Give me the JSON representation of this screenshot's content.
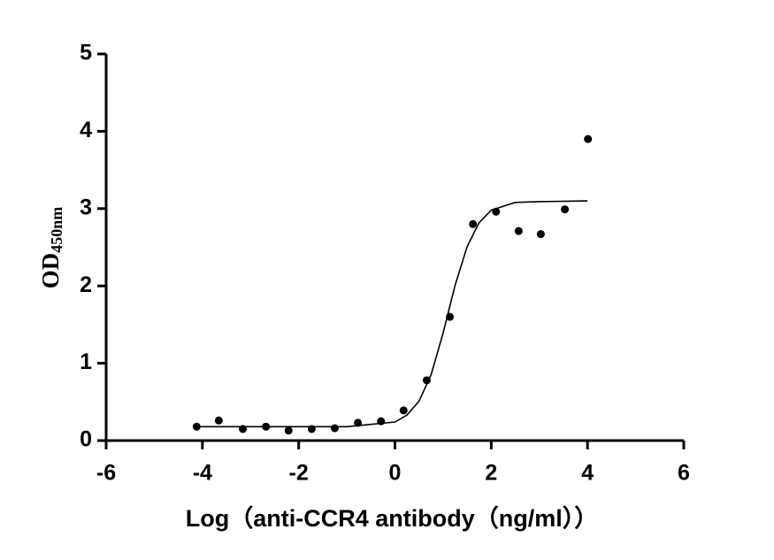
{
  "chart_data": {
    "type": "scatter",
    "xlabel": "Log（anti-CCR4 antibody（ng/ml））",
    "ylabel": "OD",
    "ylabel_subscript": "450nm",
    "x": [
      -4.12,
      -3.66,
      -3.16,
      -2.68,
      -2.21,
      -1.73,
      -1.25,
      -0.77,
      -0.29,
      0.18,
      0.66,
      1.14,
      1.62,
      2.1,
      2.57,
      3.03,
      3.53,
      4.01
    ],
    "y": [
      0.18,
      0.26,
      0.15,
      0.18,
      0.13,
      0.15,
      0.16,
      0.23,
      0.25,
      0.39,
      0.78,
      1.6,
      2.8,
      2.96,
      2.71,
      2.67,
      2.99,
      3.9
    ],
    "color": "#000000",
    "fit": {
      "x": [
        -4.1,
        -3,
        -2,
        -1,
        0,
        0.25,
        0.5,
        0.75,
        1,
        1.25,
        1.5,
        1.75,
        2,
        2.5,
        3,
        4
      ],
      "y": [
        0.18,
        0.18,
        0.18,
        0.18,
        0.24,
        0.33,
        0.51,
        0.85,
        1.39,
        2.01,
        2.51,
        2.82,
        2.98,
        3.08,
        3.09,
        3.1
      ],
      "color": "#000000"
    },
    "xlim": [
      -6,
      6
    ],
    "xticks": [
      -6,
      -4,
      -2,
      0,
      2,
      4,
      6
    ],
    "ylim": [
      0,
      5
    ],
    "yticks": [
      0,
      1,
      2,
      3,
      4,
      5
    ],
    "grid": false
  }
}
